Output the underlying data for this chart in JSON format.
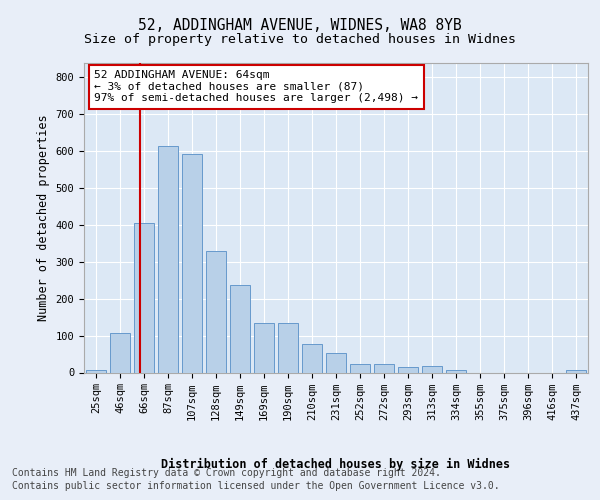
{
  "title1": "52, ADDINGHAM AVENUE, WIDNES, WA8 8YB",
  "title2": "Size of property relative to detached houses in Widnes",
  "xlabel": "Distribution of detached houses by size in Widnes",
  "ylabel": "Number of detached properties",
  "categories": [
    "25sqm",
    "46sqm",
    "66sqm",
    "87sqm",
    "107sqm",
    "128sqm",
    "149sqm",
    "169sqm",
    "190sqm",
    "210sqm",
    "231sqm",
    "252sqm",
    "272sqm",
    "293sqm",
    "313sqm",
    "334sqm",
    "355sqm",
    "375sqm",
    "396sqm",
    "416sqm",
    "437sqm"
  ],
  "values": [
    8,
    107,
    405,
    615,
    592,
    330,
    238,
    135,
    135,
    78,
    53,
    23,
    23,
    15,
    18,
    8,
    0,
    0,
    0,
    0,
    8
  ],
  "bar_color": "#b8d0e8",
  "bar_edge_color": "#6699cc",
  "vline_x": 1.85,
  "vline_color": "#cc0000",
  "annotation_text": "52 ADDINGHAM AVENUE: 64sqm\n← 3% of detached houses are smaller (87)\n97% of semi-detached houses are larger (2,498) →",
  "annotation_box_color": "#ffffff",
  "annotation_box_edge": "#cc0000",
  "ylim": [
    0,
    840
  ],
  "yticks": [
    0,
    100,
    200,
    300,
    400,
    500,
    600,
    700,
    800
  ],
  "footer1": "Contains HM Land Registry data © Crown copyright and database right 2024.",
  "footer2": "Contains public sector information licensed under the Open Government Licence v3.0.",
  "background_color": "#e8eef8",
  "plot_bg_color": "#dce8f5",
  "grid_color": "#ffffff",
  "title_fontsize": 10.5,
  "subtitle_fontsize": 9.5,
  "axis_label_fontsize": 8.5,
  "tick_fontsize": 7.5,
  "annotation_fontsize": 8,
  "footer_fontsize": 7
}
